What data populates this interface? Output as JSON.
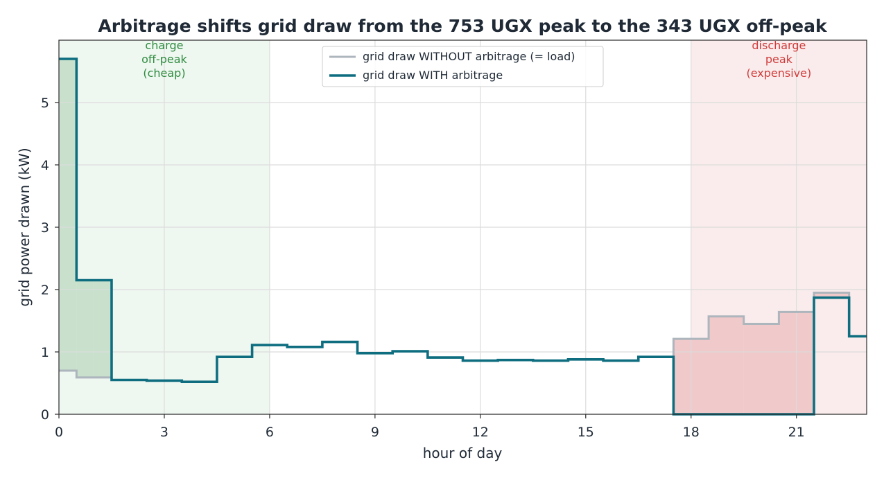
{
  "chart_data": {
    "type": "line",
    "step": "post",
    "title": "Arbitrage shifts grid draw from the 753 UGX peak to the 343 UGX off-peak",
    "xlabel": "hour of day",
    "ylabel": "grid power drawn (kW)",
    "xlim": [
      0,
      23
    ],
    "ylim": [
      0,
      6
    ],
    "xticks": [
      0,
      3,
      6,
      9,
      12,
      15,
      18,
      21
    ],
    "yticks": [
      0,
      1,
      2,
      3,
      4,
      5
    ],
    "grid": true,
    "legend_position": "top-center",
    "x": [
      0,
      0.5,
      1,
      1.5,
      2.5,
      3.5,
      4.5,
      5.5,
      6.5,
      7.5,
      8.5,
      9.5,
      10.5,
      11.5,
      12.5,
      13.5,
      14.5,
      15.5,
      16.5,
      17.5,
      18.5,
      19.5,
      20.5,
      21.5,
      22.5
    ],
    "series": [
      {
        "name": "grid draw WITHOUT arbitrage (= load)",
        "color": "#adb5bd",
        "values": [
          0.7,
          0.59,
          0.59,
          0.55,
          0.54,
          0.52,
          0.92,
          1.11,
          1.08,
          1.16,
          0.98,
          1.01,
          0.91,
          0.86,
          0.87,
          0.86,
          0.88,
          0.86,
          0.92,
          1.21,
          1.57,
          1.45,
          1.64,
          1.95,
          1.25
        ]
      },
      {
        "name": "grid draw WITH arbitrage",
        "color": "#0e6e80",
        "values": [
          5.7,
          2.15,
          2.15,
          0.55,
          0.54,
          0.52,
          0.92,
          1.11,
          1.08,
          1.16,
          0.98,
          1.01,
          0.91,
          0.86,
          0.87,
          0.86,
          0.88,
          0.86,
          0.92,
          0.0,
          0.0,
          0.0,
          0.0,
          1.87,
          1.25
        ]
      }
    ],
    "zones": [
      {
        "label": [
          "charge",
          "off-peak",
          "(cheap)"
        ],
        "x0": 0,
        "x1": 6,
        "fill": "#eff7f1",
        "text_color": "#2e8b3e"
      },
      {
        "label": [
          "discharge",
          "peak",
          "(expensive)"
        ],
        "x0": 18,
        "x1": 23,
        "fill": "#faecec",
        "text_color": "#d13b3b"
      }
    ],
    "fills": {
      "charge_color": "#c8e0cc",
      "discharge_color": "#f0c9ca"
    }
  }
}
